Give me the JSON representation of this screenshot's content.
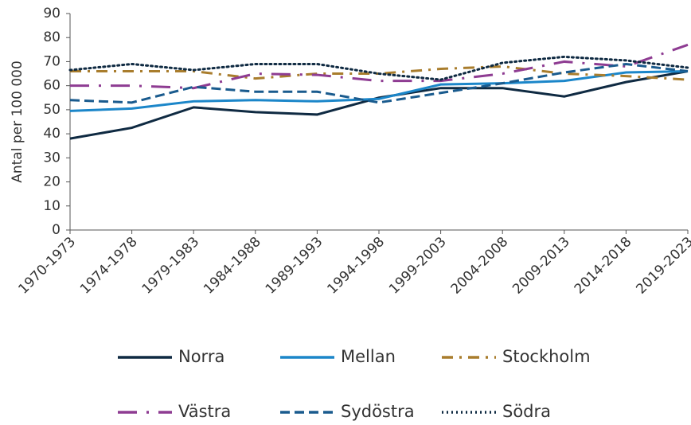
{
  "chart_data": {
    "type": "line",
    "y_label": "Antal per 100 000",
    "categories": [
      "1970-1973",
      "1974-1978",
      "1979-1983",
      "1984-1988",
      "1989-1993",
      "1994-1998",
      "1999-2003",
      "2004-2008",
      "2009-2013",
      "2014-2018",
      "2019-2023"
    ],
    "ylim": [
      0,
      90
    ],
    "yticks": [
      0,
      10,
      20,
      30,
      40,
      50,
      60,
      70,
      80,
      90
    ],
    "grid": false,
    "series": [
      {
        "name": "Norra",
        "color": "#0f2a42",
        "line_style": "solid",
        "values": [
          38,
          42.5,
          51,
          49,
          48,
          55,
          59,
          59,
          55.5,
          61.5,
          66
        ]
      },
      {
        "name": "Mellan",
        "color": "#1b86c9",
        "line_style": "solid",
        "values": [
          49.5,
          50.5,
          53.5,
          54,
          53.5,
          54.5,
          60.5,
          61,
          62,
          65.5,
          66
        ]
      },
      {
        "name": "Stockholm",
        "color": "#a97d2d",
        "line_style": "dashdot",
        "values": [
          66,
          66,
          66,
          63,
          65,
          65,
          67,
          68,
          65,
          64,
          62.5
        ]
      },
      {
        "name": "Västra",
        "color": "#8e3c92",
        "line_style": "longdashdot",
        "values": [
          60,
          60,
          59,
          65,
          64.5,
          62,
          62,
          65,
          70,
          68,
          77
        ]
      },
      {
        "name": "Sydöstra",
        "color": "#1a5b8e",
        "line_style": "dashed",
        "values": [
          54,
          53,
          59.5,
          57.5,
          57.5,
          53,
          57,
          61,
          65.5,
          69,
          66
        ]
      },
      {
        "name": "Södra",
        "color": "#0f2a42",
        "line_style": "dotted",
        "values": [
          66.5,
          69,
          66.5,
          69,
          69,
          65,
          62.5,
          69.5,
          72,
          70.5,
          67.5
        ]
      }
    ]
  }
}
